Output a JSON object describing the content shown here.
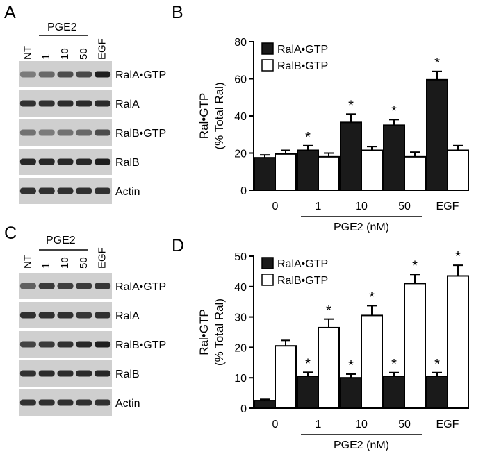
{
  "panels": {
    "A": {
      "letter": "A",
      "group_label": "PGE2",
      "lanes": [
        "NT",
        "1",
        "10",
        "50",
        "EGF"
      ],
      "rows": [
        {
          "label": "RalA•GTP",
          "intensity": [
            0.45,
            0.55,
            0.7,
            0.72,
            0.95
          ]
        },
        {
          "label": "RalA",
          "intensity": [
            0.85,
            0.85,
            0.88,
            0.88,
            0.88
          ]
        },
        {
          "label": "RalB•GTP",
          "intensity": [
            0.5,
            0.45,
            0.5,
            0.55,
            0.7
          ]
        },
        {
          "label": "RalB",
          "intensity": [
            0.9,
            0.9,
            0.9,
            0.9,
            0.95
          ]
        },
        {
          "label": "Actin",
          "intensity": [
            0.85,
            0.85,
            0.85,
            0.85,
            0.85
          ]
        }
      ]
    },
    "B": {
      "letter": "B"
    },
    "C": {
      "letter": "C",
      "group_label": "PGE2",
      "lanes": [
        "NT",
        "1",
        "10",
        "50",
        "EGF"
      ],
      "rows": [
        {
          "label": "RalA•GTP",
          "intensity": [
            0.6,
            0.8,
            0.78,
            0.8,
            0.82
          ]
        },
        {
          "label": "RalA",
          "intensity": [
            0.85,
            0.85,
            0.85,
            0.82,
            0.85
          ]
        },
        {
          "label": "RalB•GTP",
          "intensity": [
            0.75,
            0.8,
            0.85,
            0.9,
            0.95
          ]
        },
        {
          "label": "RalB",
          "intensity": [
            0.85,
            0.88,
            0.88,
            0.88,
            0.9
          ]
        },
        {
          "label": "Actin",
          "intensity": [
            0.85,
            0.85,
            0.85,
            0.85,
            0.85
          ]
        }
      ]
    },
    "D": {
      "letter": "D"
    }
  },
  "colors": {
    "ralA_fill": "#1a1a1a",
    "ralB_fill": "#ffffff",
    "blot_bg": "#cfcfcf",
    "band": "#141414",
    "axis": "#000000"
  },
  "chart_data": [
    {
      "panel": "B",
      "type": "bar",
      "categories": [
        "0",
        "1",
        "10",
        "50",
        "EGF"
      ],
      "group_label": "PGE2 (nM)",
      "ylabel": "Ral•GTP\n(% Total Ral)",
      "ylabel_lines": [
        "Ral•GTP",
        "(% Total Ral)"
      ],
      "ylim": [
        0,
        80
      ],
      "yticks": [
        0,
        20,
        40,
        60,
        80
      ],
      "legend_position": "top-left",
      "series": [
        {
          "name": "RalA•GTP",
          "color": "#1a1a1a",
          "values": [
            17.5,
            21.5,
            36.5,
            35,
            59.5
          ],
          "errors": [
            1.5,
            2.5,
            4.5,
            3,
            4.5
          ],
          "significant": [
            false,
            true,
            true,
            true,
            true
          ]
        },
        {
          "name": "RalB•GTP",
          "color": "#ffffff",
          "values": [
            19.5,
            18,
            21.5,
            18,
            21.5
          ],
          "errors": [
            2,
            2,
            2,
            2.5,
            2.5
          ],
          "significant": [
            false,
            false,
            false,
            false,
            false
          ]
        }
      ],
      "annotation": "*"
    },
    {
      "panel": "D",
      "type": "bar",
      "categories": [
        "0",
        "1",
        "10",
        "50",
        "EGF"
      ],
      "group_label": "PGE2 (nM)",
      "ylabel": "Ral•GTP\n(% Total Ral)",
      "ylabel_lines": [
        "Ral•GTP",
        "(% Total Ral)"
      ],
      "ylim": [
        0,
        50
      ],
      "yticks": [
        0,
        10,
        20,
        30,
        40,
        50
      ],
      "legend_position": "top-left",
      "series": [
        {
          "name": "RalA•GTP",
          "color": "#1a1a1a",
          "values": [
            2.5,
            10.5,
            10,
            10.5,
            10.5
          ],
          "errors": [
            0.4,
            1.3,
            1.2,
            1.2,
            1.2
          ],
          "significant": [
            false,
            true,
            true,
            true,
            true
          ]
        },
        {
          "name": "RalB•GTP",
          "color": "#ffffff",
          "values": [
            20.5,
            26.5,
            30.5,
            41,
            43.5
          ],
          "errors": [
            1.8,
            2.8,
            3.2,
            3,
            3.5
          ],
          "significant": [
            false,
            true,
            true,
            true,
            true
          ]
        }
      ],
      "annotation": "*"
    }
  ]
}
